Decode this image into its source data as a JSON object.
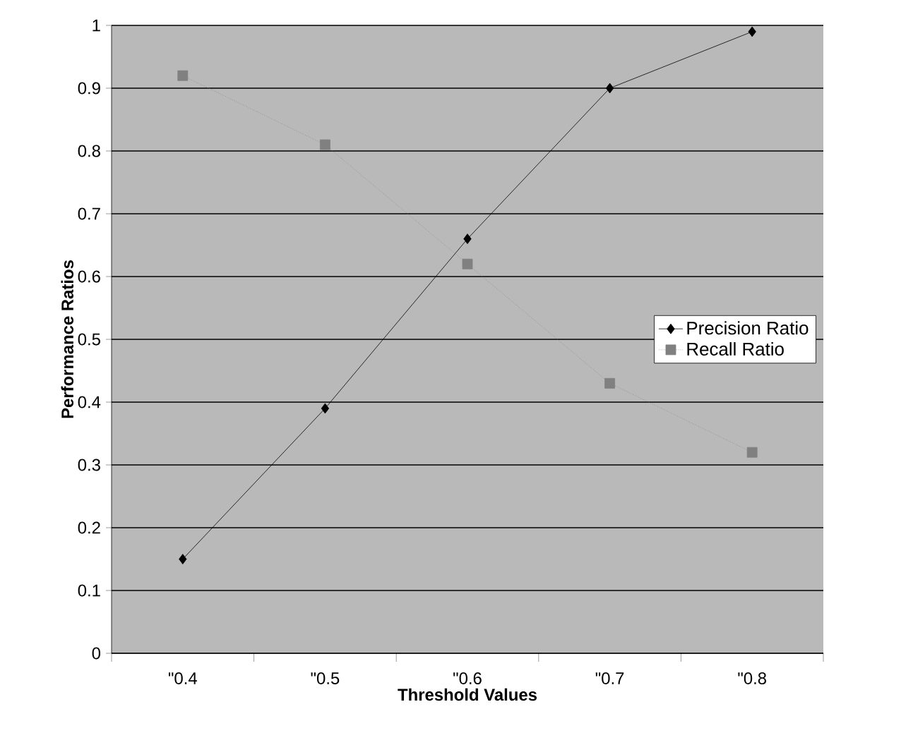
{
  "chart_data": {
    "type": "line",
    "xlabel": "Threshold Values",
    "ylabel": "Performance Ratios",
    "categories": [
      "\"0.4",
      "\"0.5",
      "\"0.6",
      "\"0.7",
      "\"0.8"
    ],
    "series": [
      {
        "name": "Precision Ratio",
        "color": "#000000",
        "marker": "diamond",
        "line_style": "solid",
        "values": [
          0.15,
          0.39,
          0.66,
          0.9,
          0.99
        ]
      },
      {
        "name": "Recall Ratio",
        "color": "#808080",
        "marker": "square",
        "line_style": "dotted",
        "values": [
          0.92,
          0.81,
          0.62,
          0.43,
          0.32
        ]
      }
    ],
    "ylim": [
      0,
      1
    ],
    "yticks": [
      0,
      0.1,
      0.2,
      0.3,
      0.4,
      0.5,
      0.6,
      0.7,
      0.8,
      0.9,
      1
    ],
    "grid": "y",
    "legend": "right"
  }
}
